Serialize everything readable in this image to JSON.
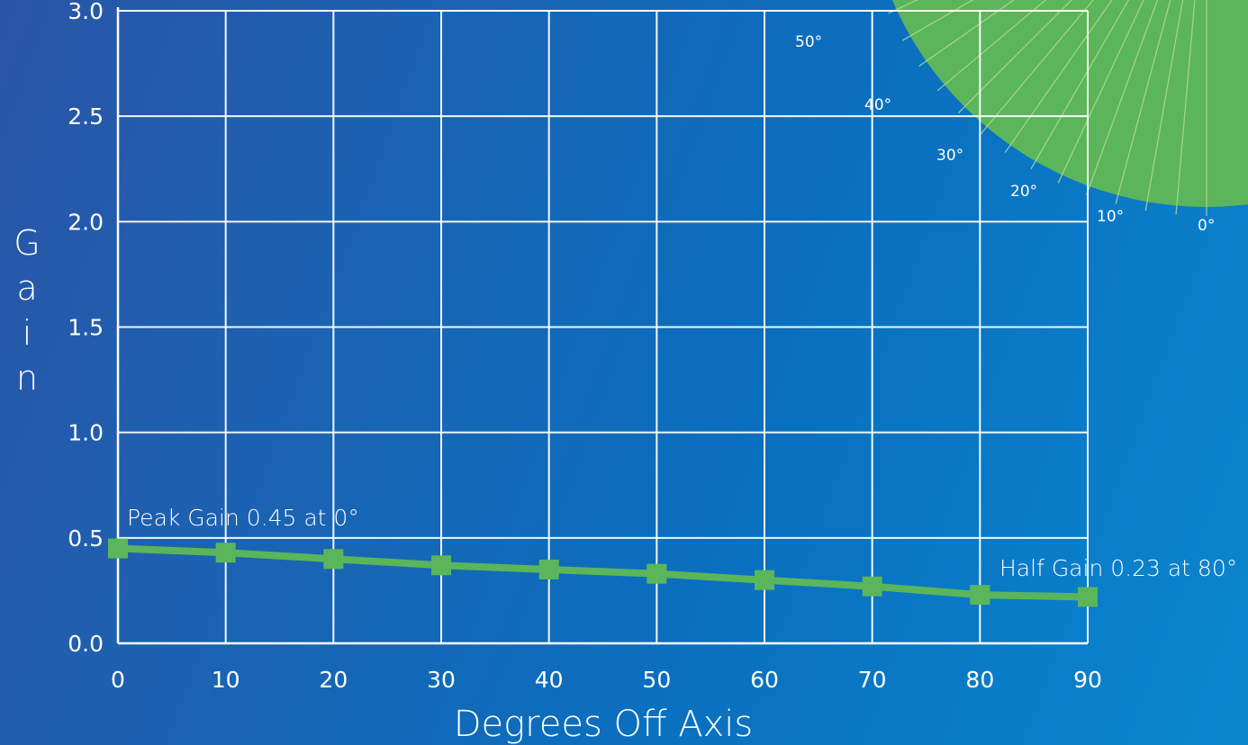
{
  "chart_data": {
    "type": "line",
    "title": "",
    "xlabel": "Degrees Off Axis",
    "ylabel": "Gain",
    "x": [
      0,
      10,
      20,
      30,
      40,
      50,
      60,
      70,
      80,
      90
    ],
    "y": [
      0.45,
      0.43,
      0.4,
      0.37,
      0.35,
      0.33,
      0.3,
      0.27,
      0.23,
      0.22
    ],
    "xlim": [
      0,
      90
    ],
    "ylim": [
      0,
      3.0
    ],
    "xticks": [
      "0",
      "10",
      "20",
      "30",
      "40",
      "50",
      "60",
      "70",
      "80",
      "90"
    ],
    "yticks": [
      "0.0",
      "0.5",
      "1.0",
      "1.5",
      "2.0",
      "2.5",
      "3.0"
    ],
    "grid": true,
    "annotations": {
      "peak": "Peak Gain 0.45 at 0°",
      "half": "Half Gain 0.23 at 80°"
    },
    "polar_inset_labels": [
      "50°",
      "40°",
      "30°",
      "20°",
      "10°",
      "0°"
    ],
    "colors": {
      "series": "#5bb55a",
      "grid": "#ffffff",
      "inset": "#5bb55a",
      "background_start": "#2a55a6",
      "background_end": "#0a86cf"
    }
  }
}
